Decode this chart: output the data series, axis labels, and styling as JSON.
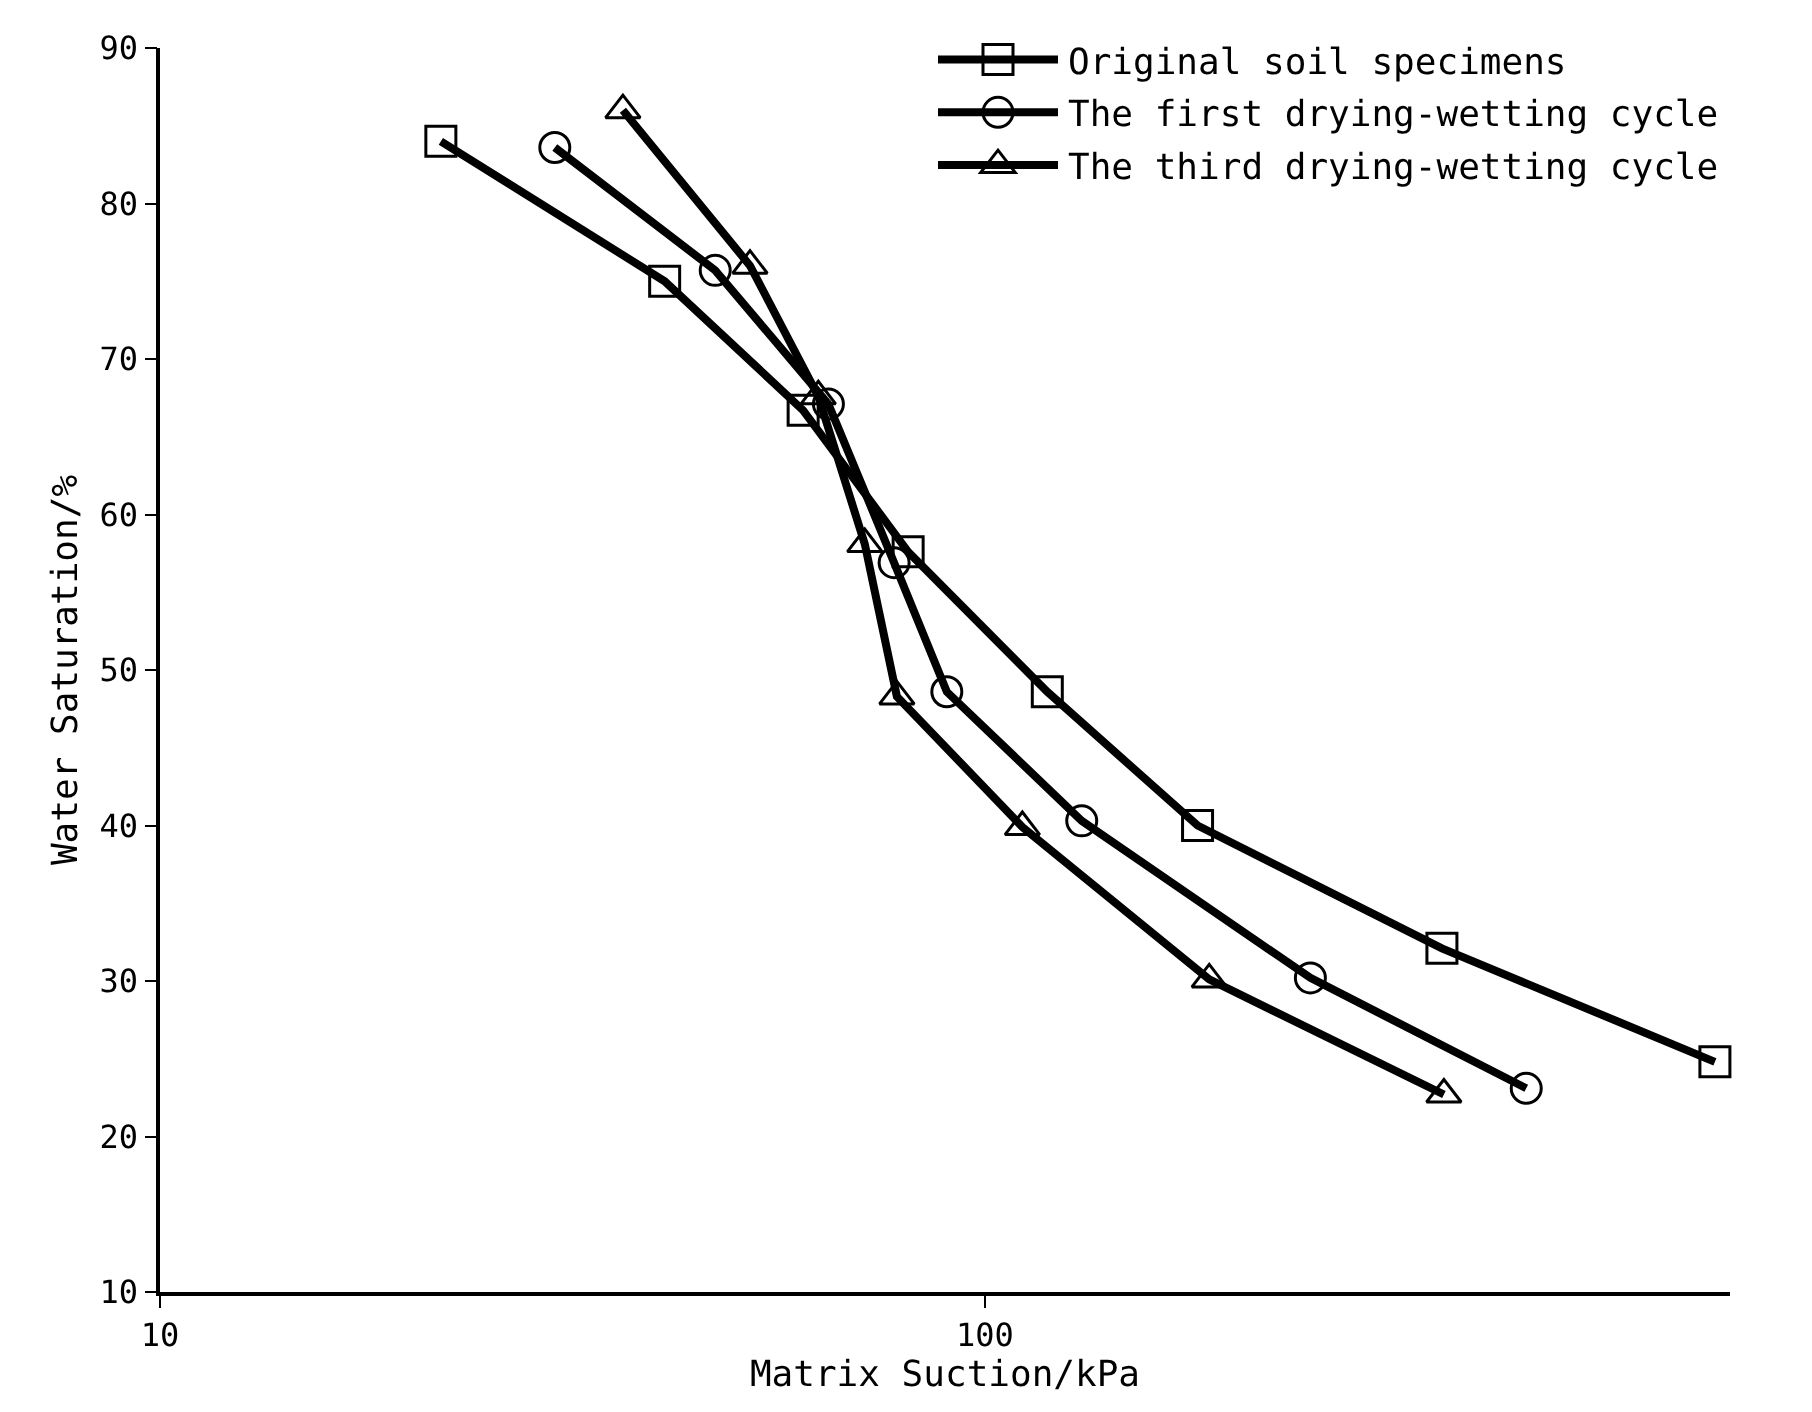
{
  "chart_data": {
    "type": "line",
    "xlabel": "Matrix Suction/kPa",
    "ylabel": "Water Saturation/%",
    "log": "x",
    "xlim": [
      10,
      800
    ],
    "xticks": [
      10,
      100
    ],
    "ylim": [
      10,
      90
    ],
    "yticks": [
      10,
      20,
      30,
      40,
      50,
      60,
      70,
      80,
      90
    ],
    "legend": "top right",
    "line_style": "solid",
    "series": [
      {
        "name": "Original soil specimens",
        "color": "#000000",
        "marker": "square",
        "x": [
          21.9,
          40.9,
          60.2,
          80.7,
          119,
          181,
          358,
          767
        ],
        "values": [
          84,
          75,
          66.7,
          57.6,
          48.6,
          40,
          32.1,
          24.8
        ]
      },
      {
        "name": "The first drying-wetting cycle",
        "color": "#000000",
        "marker": "circle",
        "x": [
          30.1,
          47.1,
          64.6,
          77.6,
          89.9,
          131,
          248,
          453
        ],
        "values": [
          83.6,
          75.7,
          67.1,
          56.9,
          48.6,
          40.3,
          30.2,
          23.1
        ]
      },
      {
        "name": "The third drying-wetting cycle",
        "color": "#000000",
        "marker": "triangle",
        "x": [
          36.4,
          51.9,
          62.8,
          71.5,
          78.2,
          111,
          187,
          360
        ],
        "values": [
          86,
          76,
          67.6,
          58.1,
          48.3,
          39.9,
          30.1,
          22.7
        ]
      }
    ]
  }
}
